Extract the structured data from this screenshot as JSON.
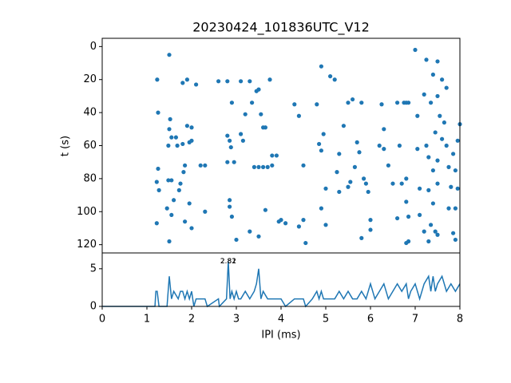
{
  "chart_data": [
    {
      "type": "scatter",
      "title": "20230424_101836UTC_V12",
      "y_label": "t (s)",
      "color": "#1f77b4",
      "xlim": [
        0,
        8
      ],
      "ylim": [
        125,
        -5
      ],
      "yticks": [
        0,
        20,
        40,
        60,
        80,
        100,
        120
      ],
      "x": [
        1.23,
        1.25,
        1.22,
        1.25,
        1.27,
        1.22,
        1.5,
        1.48,
        1.5,
        1.52,
        1.55,
        1.48,
        1.55,
        1.45,
        1.6,
        1.55,
        1.5,
        1.65,
        1.68,
        1.72,
        1.75,
        1.8,
        1.8,
        1.82,
        1.85,
        1.85,
        1.9,
        1.9,
        1.95,
        1.95,
        2.0,
        2.0,
        2.0,
        2.1,
        2.2,
        2.3,
        2.3,
        2.6,
        2.8,
        2.8,
        2.85,
        2.8,
        2.85,
        2.88,
        2.85,
        2.9,
        2.95,
        2.9,
        3.0,
        3.1,
        3.1,
        3.2,
        3.15,
        3.3,
        3.4,
        3.35,
        3.3,
        3.45,
        3.5,
        3.5,
        3.5,
        3.55,
        3.6,
        3.65,
        3.6,
        3.65,
        3.75,
        3.7,
        3.8,
        3.9,
        3.8,
        3.95,
        4.0,
        4.1,
        4.3,
        4.4,
        4.4,
        4.5,
        4.5,
        4.55,
        4.8,
        4.85,
        4.9,
        4.9,
        4.95,
        4.9,
        5.0,
        5.0,
        5.1,
        5.2,
        5.3,
        5.25,
        5.3,
        5.4,
        5.5,
        5.5,
        5.55,
        5.6,
        5.65,
        5.7,
        5.75,
        5.8,
        5.8,
        5.85,
        5.9,
        5.95,
        6.0,
        6.0,
        6.2,
        6.25,
        6.3,
        6.3,
        6.4,
        6.5,
        6.6,
        6.6,
        6.65,
        6.7,
        6.75,
        6.8,
        6.8,
        6.85,
        6.8,
        6.85,
        6.8,
        6.85,
        7.0,
        7.05,
        7.05,
        7.1,
        7.1,
        7.2,
        7.25,
        7.25,
        7.3,
        7.3,
        7.3,
        7.35,
        7.4,
        7.4,
        7.45,
        7.45,
        7.5,
        7.5,
        7.5,
        7.5,
        7.55,
        7.6,
        7.6,
        7.65,
        7.7,
        7.7,
        7.75,
        7.75,
        7.8,
        7.85,
        7.85,
        7.9,
        7.9,
        7.95,
        8.0,
        7.95,
        7.9,
        7.4,
        7.35,
        7.2,
        7.5
      ],
      "values": [
        20,
        40,
        82,
        74,
        87,
        107,
        5,
        60,
        50,
        44,
        55,
        81,
        81,
        98,
        93,
        102,
        118,
        55,
        60,
        87,
        83,
        22,
        59,
        76,
        72,
        106,
        48,
        20,
        58,
        95,
        57,
        49,
        110,
        23,
        72,
        72,
        100,
        21,
        21,
        54,
        57,
        70,
        93,
        61,
        97,
        34,
        70,
        103,
        117,
        21,
        53,
        41,
        57,
        112,
        73,
        34,
        21,
        27,
        26,
        73,
        115,
        41,
        49,
        49,
        73,
        99,
        20,
        73,
        66,
        66,
        72,
        106,
        105,
        107,
        35,
        42,
        109,
        72,
        105,
        119,
        35,
        59,
        12,
        63,
        53,
        98,
        86,
        108,
        18,
        20,
        65,
        76,
        88,
        48,
        34,
        85,
        82,
        32,
        73,
        58,
        64,
        116,
        34,
        80,
        83,
        88,
        105,
        111,
        60,
        35,
        50,
        62,
        72,
        83,
        34,
        104,
        60,
        83,
        34,
        34,
        80,
        34,
        94,
        103,
        119,
        118,
        2,
        42,
        62,
        86,
        102,
        29,
        8,
        60,
        67,
        87,
        118,
        34,
        17,
        75,
        52,
        112,
        9,
        30,
        69,
        83,
        42,
        20,
        56,
        46,
        25,
        60,
        73,
        98,
        85,
        65,
        113,
        98,
        75,
        57,
        47,
        86,
        117,
        95,
        108,
        112,
        114
      ]
    },
    {
      "type": "line",
      "x_label": "IPI (ms)",
      "color": "#1f77b4",
      "xlim": [
        0,
        8
      ],
      "xticks": [
        0,
        1,
        2,
        3,
        4,
        5,
        6,
        7,
        8
      ],
      "ylim": [
        0,
        7.1
      ],
      "yticks": [
        0,
        5
      ],
      "annotations": [
        {
          "text": "2.82",
          "x": 2.82,
          "y": 6
        },
        {
          "text": "2.81",
          "x": 2.82,
          "y": 6
        }
      ],
      "x": [
        0,
        1.18,
        1.2,
        1.23,
        1.27,
        1.3,
        1.45,
        1.5,
        1.55,
        1.6,
        1.7,
        1.75,
        1.8,
        1.85,
        1.9,
        1.95,
        2.0,
        2.05,
        2.1,
        2.2,
        2.3,
        2.35,
        2.6,
        2.62,
        2.78,
        2.82,
        2.86,
        2.9,
        2.95,
        3.0,
        3.05,
        3.1,
        3.2,
        3.3,
        3.4,
        3.45,
        3.5,
        3.55,
        3.6,
        3.7,
        3.8,
        3.9,
        4.0,
        4.1,
        4.3,
        4.4,
        4.5,
        4.55,
        4.7,
        4.8,
        4.85,
        4.9,
        4.95,
        5.0,
        5.1,
        5.2,
        5.3,
        5.4,
        5.5,
        5.6,
        5.7,
        5.8,
        5.9,
        6.0,
        6.1,
        6.2,
        6.3,
        6.4,
        6.5,
        6.6,
        6.7,
        6.8,
        6.85,
        6.9,
        7.0,
        7.05,
        7.1,
        7.2,
        7.3,
        7.35,
        7.4,
        7.45,
        7.5,
        7.6,
        7.7,
        7.8,
        7.9,
        8.0
      ],
      "values": [
        0,
        0,
        2,
        2,
        0,
        0,
        0,
        4,
        1,
        2,
        1,
        2,
        2,
        1,
        2,
        1,
        2,
        0,
        1,
        1,
        1,
        0,
        1,
        0,
        1,
        6,
        1,
        2,
        1,
        2,
        1,
        1,
        2,
        1,
        2,
        3,
        5,
        1,
        2,
        1,
        1,
        1,
        1,
        0,
        1,
        1,
        1,
        0,
        1,
        2,
        1,
        2,
        1,
        1,
        1,
        1,
        2,
        1,
        2,
        1,
        1,
        2,
        1,
        3,
        1,
        2,
        3,
        1,
        2,
        3,
        2,
        3,
        1,
        2,
        3,
        2,
        1,
        3,
        4,
        2,
        4,
        2,
        3,
        4,
        2,
        3,
        2,
        3
      ]
    }
  ]
}
